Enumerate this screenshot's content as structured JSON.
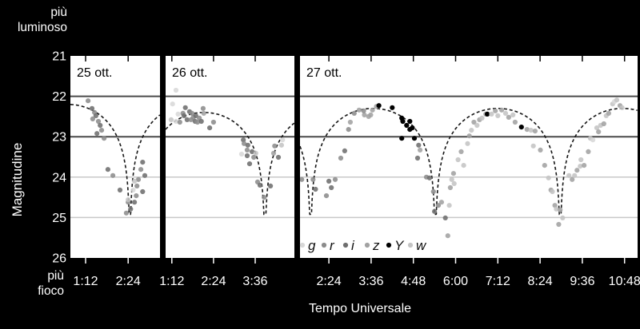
{
  "figure": {
    "background": "#000000",
    "text_color": "#ffffff"
  },
  "labels": {
    "brighter": "più\nluminoso",
    "fainter": "più\nfioco",
    "y_title": "Magnitudine",
    "x_title": "Tempo Universale"
  },
  "chart_data": {
    "type": "scatter",
    "title": "",
    "xlabel": "Tempo Universale",
    "ylabel": "Magnitudine",
    "ylim": [
      26,
      21
    ],
    "y_axis_inverted": true,
    "y_ticks": [
      "21",
      "22",
      "23",
      "24",
      "25",
      "26"
    ],
    "legend": {
      "items": [
        "g",
        "r",
        "i",
        "z",
        "Y",
        "w"
      ],
      "position": "inside-bottom-left-of-third-panel"
    },
    "bands": {
      "g": "#d8d8d8",
      "r": "#8c8c8c",
      "i": "#6e6e6e",
      "z": "#a2a2a2",
      "Y": "#000000",
      "w": "#c4c4c4"
    },
    "layout": {
      "plot_background": "#ffffff",
      "model_color": "#161616",
      "model_line": "dashed",
      "separator_color": "#000000",
      "gridlines": [
        {
          "mag": 22,
          "color": "#4a4a4a",
          "width": 2
        },
        {
          "mag": 23,
          "color": "#4a4a4a",
          "width": 2
        },
        {
          "mag": 24,
          "color": "#c9c9c9",
          "width": 1.5
        },
        {
          "mag": 25,
          "color": "#c9c9c9",
          "width": 1.5
        }
      ]
    },
    "panels": [
      {
        "label": "25 ott.",
        "t_start": 0.77,
        "t_end": 3.3,
        "ticks": [
          {
            "label": "1:12",
            "h": 1.2
          },
          {
            "label": "2:24",
            "h": 2.4
          }
        ],
        "model": {
          "dip_center_h": 2.45,
          "period_h": 3.51,
          "peak_mag": 22.2,
          "dip_mag": 24.92,
          "steepness": 0.7
        },
        "points": [
          [
            1.27,
            22.11,
            "r"
          ],
          [
            1.38,
            22.3,
            "i"
          ],
          [
            1.45,
            22.4,
            "r"
          ],
          [
            1.49,
            22.48,
            "i"
          ],
          [
            1.4,
            22.56,
            "r"
          ],
          [
            1.56,
            22.62,
            "r"
          ],
          [
            1.61,
            22.72,
            "i"
          ],
          [
            1.65,
            22.84,
            "r"
          ],
          [
            1.52,
            22.92,
            "i"
          ],
          [
            1.72,
            23.04,
            "r"
          ],
          [
            1.83,
            23.81,
            "i"
          ],
          [
            1.97,
            23.96,
            "r"
          ],
          [
            2.17,
            24.32,
            "i"
          ],
          [
            2.4,
            24.62,
            "r"
          ],
          [
            2.47,
            24.79,
            "i"
          ],
          [
            2.35,
            24.89,
            "r"
          ],
          [
            2.81,
            23.63,
            "i"
          ],
          [
            2.76,
            23.81,
            "r"
          ],
          [
            2.87,
            23.96,
            "i"
          ],
          [
            2.69,
            24.06,
            "r"
          ],
          [
            2.58,
            24.1,
            "w"
          ],
          [
            2.65,
            24.22,
            "r"
          ],
          [
            2.54,
            24.32,
            "g"
          ],
          [
            2.81,
            24.36,
            "i"
          ],
          [
            2.63,
            24.46,
            "r"
          ],
          [
            2.4,
            24.56,
            "w"
          ],
          [
            2.58,
            24.62,
            "i"
          ]
        ]
      },
      {
        "label": "26 ott.",
        "t_start": 1.02,
        "t_end": 4.73,
        "ticks": [
          {
            "label": "1:12",
            "h": 1.2
          },
          {
            "label": "2:24",
            "h": 2.4
          },
          {
            "label": "3:36",
            "h": 3.6
          }
        ],
        "model": {
          "dip_center_h": 3.88,
          "period_h": 3.51,
          "peak_mag": 22.4,
          "dip_mag": 24.92,
          "steepness": 0.7
        },
        "points": [
          [
            1.32,
            21.85,
            "g"
          ],
          [
            1.22,
            22.19,
            "g"
          ],
          [
            1.59,
            22.28,
            "i"
          ],
          [
            2.1,
            22.3,
            "r"
          ],
          [
            1.52,
            22.42,
            "r"
          ],
          [
            1.71,
            22.38,
            "i"
          ],
          [
            1.78,
            22.42,
            "r"
          ],
          [
            1.38,
            22.44,
            "g"
          ],
          [
            1.55,
            22.48,
            "i"
          ],
          [
            1.82,
            22.52,
            "r"
          ],
          [
            1.89,
            22.48,
            "i"
          ],
          [
            1.99,
            22.54,
            "r"
          ],
          [
            1.64,
            22.58,
            "i"
          ],
          [
            1.75,
            22.58,
            "r"
          ],
          [
            1.87,
            22.62,
            "i"
          ],
          [
            1.94,
            22.64,
            "r"
          ],
          [
            2.05,
            22.62,
            "i"
          ],
          [
            1.32,
            22.62,
            "g"
          ],
          [
            1.18,
            22.58,
            "w"
          ],
          [
            1.43,
            22.64,
            "r"
          ],
          [
            2.29,
            22.78,
            "i"
          ],
          [
            2.4,
            22.64,
            "r"
          ],
          [
            2.12,
            22.42,
            "z"
          ],
          [
            3.26,
            23.08,
            "i"
          ],
          [
            3.28,
            23.17,
            "r"
          ],
          [
            3.39,
            23.21,
            "i"
          ],
          [
            3.37,
            23.33,
            "r"
          ],
          [
            3.51,
            23.37,
            "i"
          ],
          [
            3.62,
            23.41,
            "w"
          ],
          [
            3.56,
            23.51,
            "r"
          ],
          [
            3.37,
            23.47,
            "i"
          ],
          [
            3.21,
            23.43,
            "g"
          ],
          [
            3.44,
            23.67,
            "i"
          ],
          [
            3.67,
            24.12,
            "r"
          ],
          [
            3.74,
            24.2,
            "i"
          ],
          [
            3.86,
            24.5,
            "r"
          ],
          [
            4.04,
            24.22,
            "i"
          ],
          [
            4.13,
            23.41,
            "z"
          ],
          [
            4.16,
            23.23,
            "r"
          ],
          [
            4.36,
            23.21,
            "w"
          ],
          [
            4.39,
            23.08,
            "g"
          ],
          [
            4.27,
            23.51,
            "i"
          ]
        ]
      },
      {
        "label": "27 ott.",
        "t_start": 1.58,
        "t_end": 11.17,
        "ticks": [
          {
            "label": "2:24",
            "h": 2.4
          },
          {
            "label": "3:36",
            "h": 3.6
          },
          {
            "label": "4:48",
            "h": 4.8
          },
          {
            "label": "6:00",
            "h": 6.0
          },
          {
            "label": "7:12",
            "h": 7.2
          },
          {
            "label": "8:24",
            "h": 8.4
          },
          {
            "label": "9:36",
            "h": 9.6
          },
          {
            "label": "10:48",
            "h": 10.8
          }
        ],
        "model": {
          "dip_center_h": 1.88,
          "period_h": 3.545,
          "peak_mag": 22.3,
          "dip_mag": 24.92,
          "steepness": 0.7
        },
        "points": [
          [
            1.63,
            24.06,
            "r"
          ],
          [
            1.95,
            24.06,
            "r"
          ],
          [
            2.02,
            24.3,
            "i"
          ],
          [
            2.33,
            24.46,
            "r"
          ],
          [
            2.4,
            24.1,
            "i"
          ],
          [
            2.58,
            24.06,
            "r"
          ],
          [
            2.47,
            24.26,
            "i"
          ],
          [
            2.74,
            23.53,
            "r"
          ],
          [
            2.85,
            23.35,
            "i"
          ],
          [
            2.96,
            22.82,
            "r"
          ],
          [
            3.01,
            22.64,
            "z"
          ],
          [
            3.12,
            22.42,
            "r"
          ],
          [
            3.26,
            22.34,
            "z"
          ],
          [
            3.41,
            22.46,
            "z"
          ],
          [
            3.39,
            22.36,
            "r"
          ],
          [
            3.53,
            22.5,
            "z"
          ],
          [
            3.59,
            22.46,
            "z"
          ],
          [
            3.64,
            22.34,
            "z"
          ],
          [
            3.75,
            22.25,
            "z"
          ],
          [
            3.82,
            22.23,
            "Y"
          ],
          [
            4.2,
            22.28,
            "Y"
          ],
          [
            4.47,
            22.54,
            "Y"
          ],
          [
            4.5,
            22.62,
            "Y"
          ],
          [
            4.7,
            22.62,
            "Y"
          ],
          [
            4.61,
            22.72,
            "Y"
          ],
          [
            4.7,
            22.82,
            "Y"
          ],
          [
            4.77,
            22.78,
            "Y"
          ],
          [
            4.47,
            23.04,
            "Y"
          ],
          [
            4.83,
            23.04,
            "Y"
          ],
          [
            4.95,
            23.21,
            "i"
          ],
          [
            4.99,
            23.33,
            "z"
          ],
          [
            4.92,
            23.53,
            "i"
          ],
          [
            5.17,
            24.0,
            "r"
          ],
          [
            5.26,
            24.02,
            "i"
          ],
          [
            5.37,
            24.36,
            "r"
          ],
          [
            5.4,
            24.85,
            "i"
          ],
          [
            5.51,
            24.7,
            "r"
          ],
          [
            5.6,
            24.62,
            "z"
          ],
          [
            5.71,
            25.01,
            "i"
          ],
          [
            5.78,
            25.45,
            "z"
          ],
          [
            5.82,
            24.7,
            "w"
          ],
          [
            5.85,
            24.26,
            "z"
          ],
          [
            5.89,
            24.06,
            "w"
          ],
          [
            5.94,
            23.91,
            "z"
          ],
          [
            5.96,
            24.16,
            "w"
          ],
          [
            6.07,
            23.57,
            "w"
          ],
          [
            6.16,
            23.37,
            "z"
          ],
          [
            6.23,
            23.71,
            "w"
          ],
          [
            6.34,
            23.17,
            "w"
          ],
          [
            6.39,
            22.98,
            "z"
          ],
          [
            6.45,
            22.84,
            "w"
          ],
          [
            6.52,
            22.64,
            "z"
          ],
          [
            6.61,
            22.72,
            "w"
          ],
          [
            6.68,
            22.58,
            "z"
          ],
          [
            6.75,
            22.54,
            "w"
          ],
          [
            6.86,
            22.44,
            "z"
          ],
          [
            6.9,
            22.44,
            "Y"
          ],
          [
            7.02,
            22.44,
            "w"
          ],
          [
            7.13,
            22.36,
            "z"
          ],
          [
            7.2,
            22.48,
            "w"
          ],
          [
            7.31,
            22.34,
            "z"
          ],
          [
            7.42,
            22.42,
            "w"
          ],
          [
            7.51,
            22.52,
            "z"
          ],
          [
            7.63,
            22.46,
            "w"
          ],
          [
            7.69,
            22.64,
            "z"
          ],
          [
            7.87,
            22.76,
            "Y"
          ],
          [
            8.03,
            22.82,
            "z"
          ],
          [
            8.14,
            22.84,
            "w"
          ],
          [
            8.26,
            22.86,
            "z"
          ],
          [
            8.21,
            23.23,
            "w"
          ],
          [
            8.41,
            23.33,
            "z"
          ],
          [
            8.53,
            23.71,
            "z"
          ],
          [
            8.64,
            24.02,
            "w"
          ],
          [
            8.71,
            24.32,
            "z"
          ],
          [
            8.75,
            24.36,
            "w"
          ],
          [
            8.82,
            24.7,
            "z"
          ],
          [
            8.86,
            24.79,
            "w"
          ],
          [
            8.97,
            24.81,
            "z"
          ],
          [
            9.04,
            25.01,
            "w"
          ],
          [
            8.93,
            25.17,
            "z"
          ],
          [
            9.22,
            23.96,
            "w"
          ],
          [
            9.31,
            24.06,
            "z"
          ],
          [
            9.38,
            23.96,
            "w"
          ],
          [
            9.45,
            23.83,
            "z"
          ],
          [
            9.54,
            23.73,
            "w"
          ],
          [
            9.65,
            23.71,
            "z"
          ],
          [
            9.56,
            23.57,
            "w"
          ],
          [
            9.77,
            23.37,
            "z"
          ],
          [
            9.83,
            23.04,
            "w"
          ],
          [
            9.9,
            23.08,
            "g"
          ],
          [
            10.01,
            22.78,
            "w"
          ],
          [
            10.06,
            22.88,
            "z"
          ],
          [
            10.12,
            22.72,
            "w"
          ],
          [
            10.21,
            22.68,
            "z"
          ],
          [
            10.28,
            22.48,
            "w"
          ],
          [
            10.35,
            22.42,
            "z"
          ],
          [
            10.46,
            22.19,
            "w"
          ],
          [
            10.51,
            22.13,
            "g"
          ],
          [
            10.58,
            22.09,
            "w"
          ],
          [
            10.67,
            22.23,
            "z"
          ],
          [
            10.73,
            22.28,
            "w"
          ]
        ]
      }
    ]
  }
}
